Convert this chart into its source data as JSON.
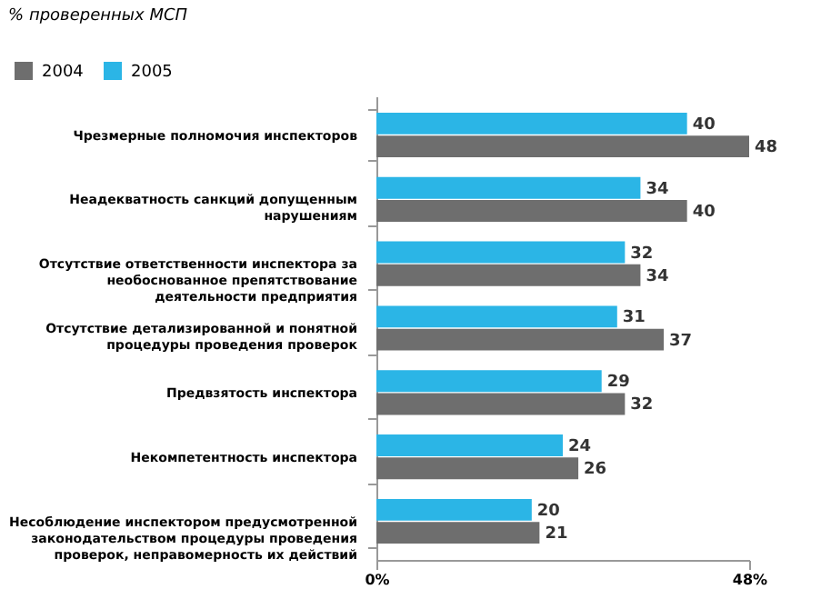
{
  "chart_data": {
    "type": "bar",
    "orientation": "horizontal",
    "title": "% проверенных МСП",
    "categories": [
      "Чрезмерные полномочия инспекторов",
      "Неадекватность санкций допущенным нарушениям",
      "Отсутствие ответственности инспектора за необоснованное препятствование деятельности предприятия",
      "Отсутствие детализированной и понятной процедуры проведения проверок",
      "Предвзятость инспектора",
      "Некомпетентность инспектора",
      "Несоблюдение инспектором предусмотренной законодательством процедуры проведения проверок, неправомерность их действий"
    ],
    "series": [
      {
        "name": "2004",
        "color": "#6e6e6e",
        "values": [
          48,
          40,
          34,
          37,
          32,
          26,
          21
        ]
      },
      {
        "name": "2005",
        "color": "#2bb5e6",
        "values": [
          40,
          34,
          32,
          31,
          29,
          24,
          20
        ]
      }
    ],
    "xlim": [
      0,
      48
    ],
    "xticks": [
      {
        "value": 0,
        "label": "0%"
      },
      {
        "value": 48,
        "label": "48%"
      }
    ],
    "legend": "top left",
    "data_labels": true
  }
}
